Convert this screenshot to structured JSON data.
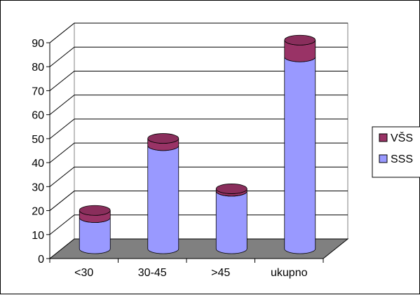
{
  "chart_data": {
    "type": "bar",
    "style": "3d-stacked-cylinder",
    "categories": [
      "<30",
      "30-45",
      ">45",
      "ukupno"
    ],
    "series": [
      {
        "name": "SSS",
        "values": [
          13,
          43,
          24,
          80
        ],
        "color": "#9999ff"
      },
      {
        "name": "VŠS",
        "values": [
          3,
          3,
          1,
          7
        ],
        "color": "#993366"
      }
    ],
    "ylim": [
      0,
      90
    ],
    "yticks": [
      0,
      10,
      20,
      30,
      40,
      50,
      60,
      70,
      80,
      90
    ],
    "grid": true,
    "legend_position": "right",
    "legend_order": [
      "VŠS",
      "SSS"
    ],
    "floor_color": "#808080",
    "wall_color": "#ffffff"
  }
}
